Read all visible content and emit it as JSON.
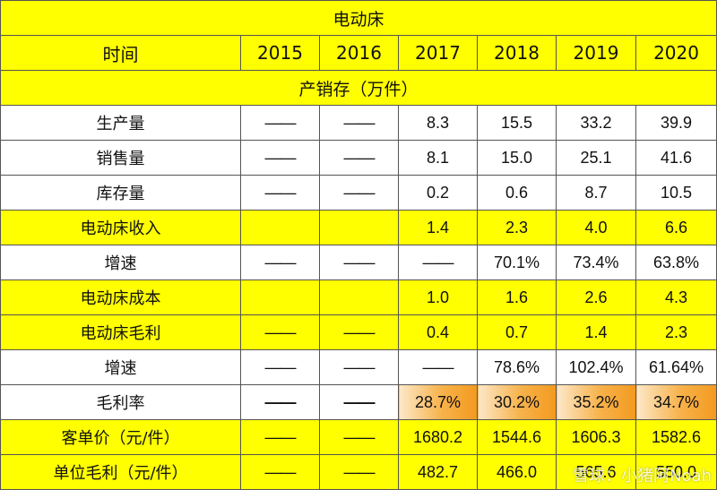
{
  "title": "电动床",
  "header": {
    "label": "时间",
    "years": [
      "2015",
      "2016",
      "2017",
      "2018",
      "2019",
      "2020"
    ]
  },
  "section_label": "产销存（万件）",
  "dash": "——",
  "rows": [
    {
      "label": "生产量",
      "cells": [
        "——",
        "——",
        "8.3",
        "15.5",
        "33.2",
        "39.9"
      ]
    },
    {
      "label": "销售量",
      "cells": [
        "——",
        "——",
        "8.1",
        "15.0",
        "25.1",
        "41.6"
      ]
    },
    {
      "label": "库存量",
      "cells": [
        "——",
        "——",
        "0.2",
        "0.6",
        "8.7",
        "10.5"
      ]
    },
    {
      "label": "电动床收入",
      "cells": [
        "",
        "",
        "1.4",
        "2.3",
        "4.0",
        "6.6"
      ]
    },
    {
      "label": "增速",
      "cells": [
        "——",
        "——",
        "——",
        "70.1%",
        "73.4%",
        "63.8%"
      ]
    },
    {
      "label": "电动床成本",
      "cells": [
        "",
        "",
        "1.0",
        "1.6",
        "2.6",
        "4.3"
      ]
    },
    {
      "label": "电动床毛利",
      "cells": [
        "——",
        "——",
        "0.4",
        "0.7",
        "1.4",
        "2.3"
      ]
    },
    {
      "label": "增速",
      "cells": [
        "——",
        "——",
        "——",
        "78.6%",
        "102.4%",
        "61.64%"
      ]
    },
    {
      "label": "毛利率",
      "cells": [
        "——",
        "——",
        "28.7%",
        "30.2%",
        "35.2%",
        "34.7%"
      ]
    },
    {
      "label": "客单价（元/件）",
      "cells": [
        "——",
        "——",
        "1680.2",
        "1544.6",
        "1606.3",
        "1582.6"
      ]
    },
    {
      "label": "单位毛利（元/件）",
      "cells": [
        "——",
        "——",
        "482.7",
        "466.0",
        "565.6",
        "550.0"
      ]
    }
  ],
  "colors": {
    "highlight": "#ffff00",
    "growth_text": "#e07020",
    "margin_2020_text": "#d42020",
    "margin_gradient": "#f39a20"
  },
  "watermark": "雪球：小猪阿Noah"
}
